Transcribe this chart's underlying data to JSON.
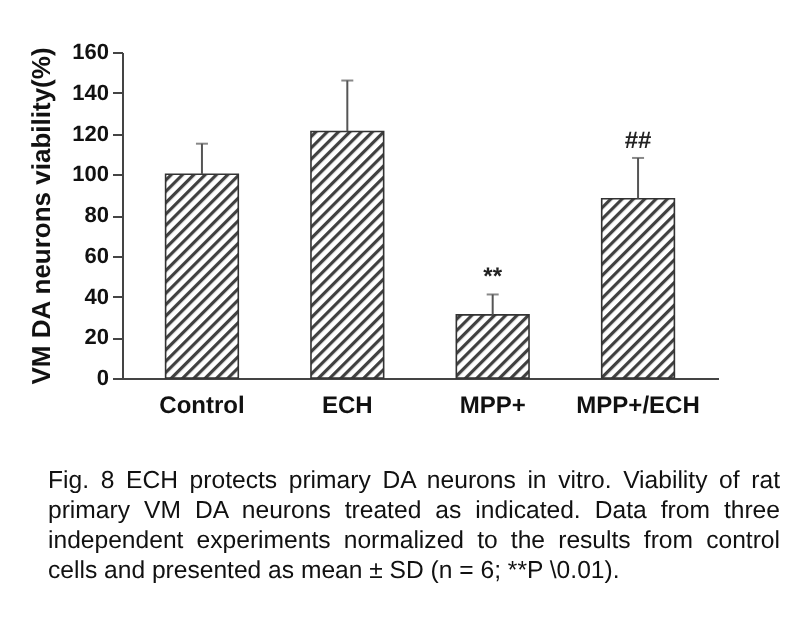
{
  "chart_data": {
    "type": "bar",
    "ylabel": "VM DA neurons viability(%)",
    "categories": [
      "Control",
      "ECH",
      "MPP+",
      "MPP+/ECH"
    ],
    "values": [
      100,
      121,
      31,
      88
    ],
    "errors": [
      [
        100,
        115
      ],
      [
        121,
        146
      ],
      [
        31,
        41
      ],
      [
        88,
        108
      ]
    ],
    "color": "#404040",
    "ylim": [
      0,
      160
    ],
    "yticks": [
      0,
      20,
      40,
      60,
      80,
      100,
      120,
      140,
      160
    ],
    "grid": false,
    "annotations": [
      {
        "text": "**",
        "x": "MPP+",
        "y": 41
      },
      {
        "text": "##",
        "x": "MPP+/ECH",
        "y": 108
      },
      "Fig. 8 ECH protects primary DA neurons in vitro. Viability of rat primary VM DA neurons treated as indicated. Data from three independent experiments normalized to the results from control cells and presented as mean ± SD (n = 6; **P \\0.01)."
    ]
  }
}
